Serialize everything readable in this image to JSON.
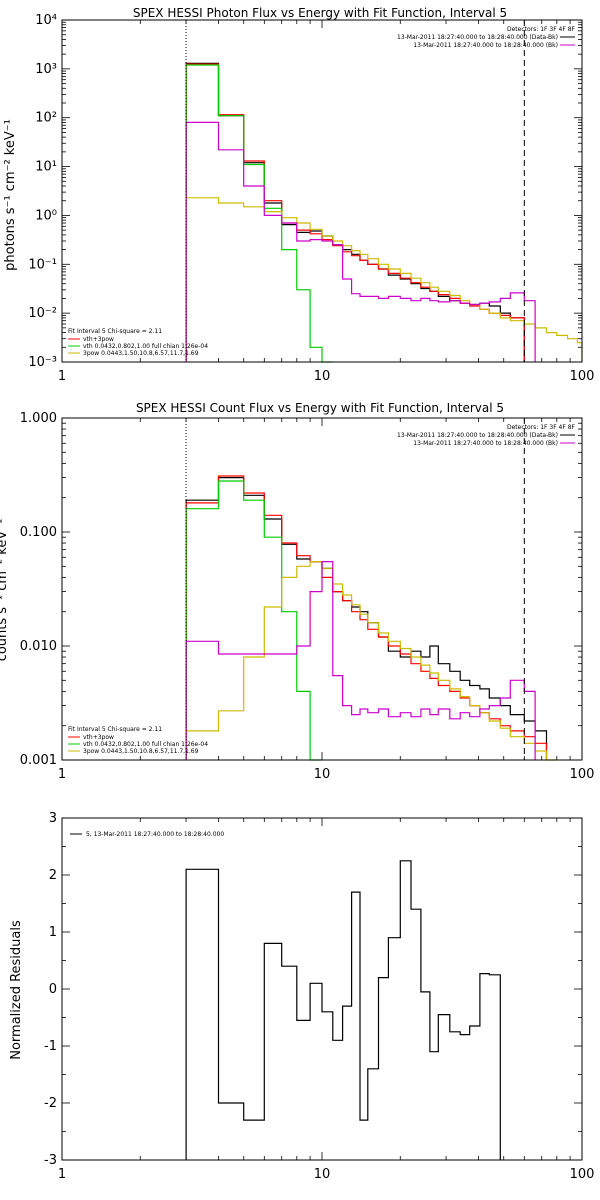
{
  "chart_data": [
    {
      "type": "line",
      "title": "SPEX HESSI Photon Flux vs Energy with Fit Function, Interval 5",
      "ylabel": "photons s⁻¹ cm⁻² keV⁻¹",
      "xlabel": "",
      "x_scale": "log",
      "y_scale": "log",
      "xlim": [
        1,
        100
      ],
      "ylim": [
        0.001,
        10000
      ],
      "x_ticks": [
        1,
        10,
        100
      ],
      "x_tick_labels": [
        "1",
        "10",
        "100"
      ],
      "y_ticks": [
        0.001,
        0.01,
        0.1,
        1,
        10,
        100,
        1000,
        10000
      ],
      "y_tick_labels": [
        "10⁻³",
        "10⁻²",
        "10⁻¹",
        "10⁰",
        "10¹",
        "10²",
        "10³",
        "10⁴"
      ],
      "vlines": [
        {
          "x": 3.0,
          "style": "dotted"
        },
        {
          "x": 60,
          "style": "dashed"
        }
      ],
      "legend_top": [
        "Detectors: 1F 3F 4F 8F",
        "13-Mar-2011 18:27:40.000 to 18:28:40.000 (Data-Bk)",
        "13-Mar-2011 18:27:40.000 to 18:28:40.000 (Bk)"
      ],
      "legend_bottom": [
        "Fit Interval 5   Chi-square = 2.11",
        "vth+3pow",
        "vth 0.0432,0.802,1.00  full chian 1.26e-04",
        "3pow 0.0443,1.50,10.8,6.57,11.7,1.69"
      ],
      "bin_edges": [
        3.0,
        4.0,
        5.0,
        6.0,
        7.0,
        8.0,
        9.0,
        10.0,
        11.0,
        12.0,
        13.0,
        14.0,
        15.0,
        16.5,
        18.0,
        20.0,
        22.0,
        24.0,
        26.0,
        28.0,
        31.0,
        34.0,
        37.0,
        40.5,
        44.0,
        48.5,
        53.0,
        60.0,
        66.0,
        73.0,
        80.0,
        88.0,
        96.0,
        100.0
      ],
      "series": [
        {
          "name": "13-Mar-2011 18:27:40.000 to 18:28:40.000 (Data-Bk)",
          "color": "#000000",
          "values": [
            1300,
            110,
            12,
            1.8,
            0.65,
            0.45,
            0.48,
            0.38,
            0.25,
            0.2,
            0.16,
            0.12,
            0.1,
            0.08,
            0.06,
            0.05,
            0.04,
            0.032,
            0.028,
            0.022,
            0.018,
            0.016,
            0.015,
            0.016,
            0.014,
            0.01,
            0.008,
            null,
            null,
            null,
            null,
            null,
            null
          ]
        },
        {
          "name": "vth+3pow",
          "color": "#ff0000",
          "values": [
            1250,
            115,
            13,
            2.0,
            0.7,
            0.5,
            0.42,
            0.32,
            0.24,
            0.18,
            0.15,
            0.12,
            0.1,
            0.08,
            0.065,
            0.052,
            0.042,
            0.034,
            0.028,
            0.024,
            0.02,
            0.016,
            0.014,
            0.012,
            0.01,
            0.009,
            0.008,
            null,
            null,
            null,
            null,
            null,
            null
          ]
        },
        {
          "name": "vth 0.0432,0.802,1.00  full chian 1.26e-04",
          "color": "#00cc00",
          "values": [
            1200,
            110,
            11,
            1.4,
            0.2,
            0.03,
            0.002,
            0.0008,
            null,
            null,
            null,
            null,
            null,
            null,
            null,
            null,
            null,
            null,
            null,
            null,
            null,
            null,
            null,
            null,
            null,
            null,
            null,
            null,
            null,
            null,
            null,
            null,
            null
          ]
        },
        {
          "name": "3pow 0.0443,1.50,10.8,6.57,11.7,1.69",
          "color": "#ccbb00",
          "values": [
            2.3,
            1.8,
            1.5,
            1.2,
            0.9,
            0.7,
            0.52,
            0.38,
            0.3,
            0.24,
            0.19,
            0.16,
            0.13,
            0.1,
            0.08,
            0.065,
            0.052,
            0.042,
            0.034,
            0.028,
            0.023,
            0.018,
            0.015,
            0.012,
            0.01,
            0.008,
            0.007,
            0.006,
            0.005,
            0.004,
            0.0035,
            0.003,
            0.0025
          ]
        },
        {
          "name": "13-Mar-2011 18:27:40.000 to 18:28:40.000 (Bk)",
          "color": "#cc00cc",
          "values": [
            80,
            22,
            4,
            1.0,
            0.7,
            0.3,
            0.32,
            0.3,
            0.25,
            0.05,
            0.025,
            0.022,
            0.022,
            0.02,
            0.022,
            0.02,
            0.018,
            0.02,
            0.018,
            0.017,
            0.018,
            0.016,
            0.015,
            0.016,
            0.017,
            0.02,
            0.026,
            0.018,
            null,
            null,
            null,
            null,
            null
          ]
        }
      ]
    },
    {
      "type": "line",
      "title": "SPEX HESSI Count Flux vs Energy with Fit Function, Interval 5",
      "ylabel": "counts s⁻¹ cm⁻² keV⁻¹",
      "xlabel": "",
      "x_scale": "log",
      "y_scale": "log",
      "xlim": [
        1,
        100
      ],
      "ylim": [
        0.001,
        1.0
      ],
      "x_ticks": [
        1,
        10,
        100
      ],
      "x_tick_labels": [
        "1",
        "10",
        "100"
      ],
      "y_ticks": [
        0.001,
        0.01,
        0.1,
        1.0
      ],
      "y_tick_labels": [
        "0.001",
        "0.010",
        "0.100",
        "1.000"
      ],
      "vlines": [
        {
          "x": 3.0,
          "style": "dotted"
        },
        {
          "x": 60,
          "style": "dashed"
        }
      ],
      "legend_top": [
        "Detectors: 1F 3F 4F 8F",
        "13-Mar-2011 18:27:40.000 to 18:28:40.000 (Data-Bk)",
        "13-Mar-2011 18:27:40.000 to 18:28:40.000 (Bk)"
      ],
      "legend_bottom": [
        "Fit Interval 5   Chi-square = 2.11",
        "vth+3pow",
        "vth 0.0432,0.802,1.00  full chian 1.26e-04",
        "3pow 0.0443,1.50,10.8,6.57,11.7,1.69"
      ],
      "bin_edges": [
        3.0,
        4.0,
        5.0,
        6.0,
        7.0,
        8.0,
        9.0,
        10.0,
        11.0,
        12.0,
        13.0,
        14.0,
        15.0,
        16.5,
        18.0,
        20.0,
        22.0,
        24.0,
        26.0,
        28.0,
        31.0,
        34.0,
        37.0,
        40.5,
        44.0,
        48.5,
        53.0,
        60.0,
        66.0,
        73.0,
        80.0
      ],
      "series": [
        {
          "name": "13-Mar-2011 18:27:40.000 to 18:28:40.000 (Data-Bk)",
          "color": "#000000",
          "values": [
            0.19,
            0.3,
            0.21,
            0.13,
            0.078,
            0.058,
            0.055,
            0.048,
            0.03,
            0.025,
            0.022,
            0.02,
            0.016,
            0.012,
            0.009,
            0.008,
            0.009,
            0.008,
            0.01,
            0.007,
            0.006,
            0.005,
            0.0045,
            0.0042,
            0.0035,
            0.003,
            0.0025,
            0.0022,
            0.0018,
            null
          ]
        },
        {
          "name": "vth+3pow",
          "color": "#ff0000",
          "values": [
            0.18,
            0.31,
            0.22,
            0.14,
            0.08,
            0.062,
            0.055,
            0.04,
            0.03,
            0.025,
            0.02,
            0.017,
            0.014,
            0.012,
            0.01,
            0.0085,
            0.007,
            0.006,
            0.0052,
            0.0045,
            0.004,
            0.0035,
            0.003,
            0.0026,
            0.0023,
            0.002,
            0.0018,
            0.0016,
            0.0014,
            null
          ]
        },
        {
          "name": "vth 0.0432,0.802,1.00  full chian 1.26e-04",
          "color": "#00cc00",
          "values": [
            0.16,
            0.28,
            0.19,
            0.09,
            0.02,
            0.004,
            0.0008,
            null,
            null,
            null,
            null,
            null,
            null,
            null,
            null,
            null,
            null,
            null,
            null,
            null,
            null,
            null,
            null,
            null,
            null,
            null,
            null,
            null,
            null,
            null
          ]
        },
        {
          "name": "3pow 0.0443,1.50,10.8,6.57,11.7,1.69",
          "color": "#ccbb00",
          "values": [
            0.0018,
            0.0027,
            0.008,
            0.022,
            0.04,
            0.05,
            0.055,
            0.048,
            0.035,
            0.028,
            0.023,
            0.019,
            0.016,
            0.013,
            0.011,
            0.0095,
            0.008,
            0.0068,
            0.0058,
            0.005,
            0.0042,
            0.0036,
            0.003,
            0.0026,
            0.0022,
            0.0019,
            0.0016,
            0.0014,
            0.0012,
            0.001
          ]
        },
        {
          "name": "13-Mar-2011 18:27:40.000 to 18:28:40.000 (Bk)",
          "color": "#cc00cc",
          "values": [
            0.011,
            0.0085,
            0.0085,
            0.0085,
            0.0085,
            0.01,
            0.03,
            0.055,
            0.0055,
            0.003,
            0.0025,
            0.0028,
            0.0026,
            0.0028,
            0.0024,
            0.0026,
            0.0024,
            0.0028,
            0.0025,
            0.0028,
            0.0023,
            0.0026,
            0.0024,
            0.0028,
            0.003,
            0.0035,
            0.005,
            0.004,
            null,
            null
          ]
        }
      ]
    },
    {
      "type": "line",
      "title": "",
      "ylabel": "Normalized Residuals",
      "xlabel": "",
      "x_scale": "log",
      "y_scale": "linear",
      "xlim": [
        1,
        100
      ],
      "ylim": [
        -3,
        3
      ],
      "x_ticks": [
        1,
        10,
        100
      ],
      "x_tick_labels": [
        "1",
        "10",
        "100"
      ],
      "y_ticks": [
        -3,
        -2,
        -1,
        0,
        1,
        2,
        3
      ],
      "y_tick_labels": [
        "-3",
        "-2",
        "-1",
        "0",
        "1",
        "2",
        "3"
      ],
      "legend_top": [
        "5, 13-Mar-2011 18:27:40.000 to 18:28:40.000"
      ],
      "bin_edges": [
        3.0,
        4.0,
        5.0,
        6.0,
        7.0,
        8.0,
        9.0,
        10.0,
        11.0,
        12.0,
        13.0,
        14.0,
        15.0,
        16.5,
        18.0,
        20.0,
        22.0,
        24.0,
        26.0,
        28.0,
        31.0,
        34.0,
        37.0,
        40.5,
        44.0,
        48.5,
        53.0,
        60.0
      ],
      "series": [
        {
          "name": "5, 13-Mar-2011 18:27:40.000 to 18:28:40.000",
          "color": "#000000",
          "values": [
            2.1,
            -2.0,
            -2.3,
            0.8,
            0.4,
            -0.55,
            0.1,
            -0.4,
            -0.9,
            -0.3,
            1.7,
            -2.3,
            -1.4,
            0.2,
            0.9,
            2.25,
            1.4,
            -0.05,
            -1.1,
            -0.45,
            -0.75,
            -0.8,
            -0.65,
            0.27,
            0.25
          ]
        }
      ]
    }
  ]
}
